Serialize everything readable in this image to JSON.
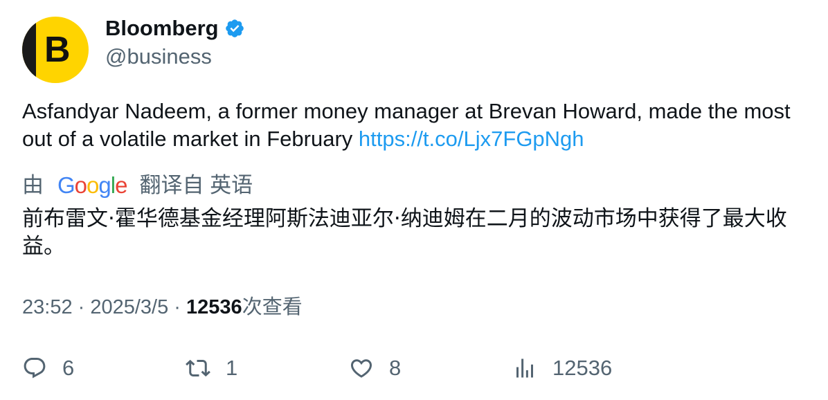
{
  "author": {
    "display_name": "Bloomberg",
    "handle": "@business",
    "avatar_letter": "B",
    "verified": true
  },
  "tweet": {
    "text": "Asfandyar Nadeem, a former money manager at Brevan Howard, made the most out of a volatile market in February ",
    "link": "https://t.co/Ljx7FGpNgh"
  },
  "translation": {
    "by_label": "由",
    "provider": "Google",
    "from_label": "翻译自 英语",
    "text": "前布雷文·霍华德基金经理阿斯法迪亚尔·纳迪姆在二月的波动市场中获得了最大收益。"
  },
  "meta": {
    "time": "23:52",
    "separator": " · ",
    "date": "2025/3/5",
    "views_count": "12536",
    "views_label": "次查看"
  },
  "actions": {
    "replies": "6",
    "retweets": "1",
    "likes": "8",
    "views": "12536"
  },
  "colors": {
    "link": "#1d9bf0",
    "secondary_text": "#536471",
    "verified": "#1d9bf0",
    "avatar_bg": "#ffd400"
  },
  "icons": [
    "verified-badge-icon",
    "reply-icon",
    "retweet-icon",
    "like-icon",
    "views-icon"
  ]
}
